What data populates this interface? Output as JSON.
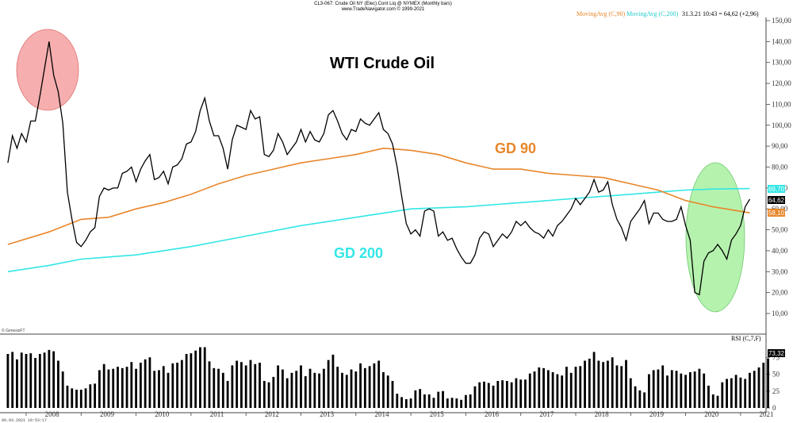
{
  "header": {
    "line1": "CL3-067: Crude Oil NY (Elec) Cont Liq @ NYMEX (Monthly bars)",
    "line2": "www.TradeNavigator.com © 1999-2021"
  },
  "legend": {
    "ma90": "MovingAvg (C,90)",
    "ma200": "MovingAvg (C,200)",
    "quote": "31.3.21 10:43 = 64,62 (+2,96)"
  },
  "annotations": {
    "title": "WTI Crude Oil",
    "gd90": "GD 90",
    "gd200": "GD 200"
  },
  "footer": {
    "genesis": "© GenesisFT",
    "timestamp": "09.03.2021 10:53:17"
  },
  "rsi": {
    "label": "RSI (C,7,F)",
    "last": "73,32"
  },
  "last_values": {
    "ma200": "69,70",
    "close": "64,62",
    "ma90": "58,10"
  },
  "colors": {
    "price": "#000000",
    "ma90": "#e8862a",
    "ma200": "#33e6e6",
    "red_circle": "#f4a0a0",
    "green_circle": "#a8f0a0",
    "axis_bg": "#ffffff"
  },
  "chart_data": {
    "type": "line",
    "title": "WTI Crude Oil",
    "x_ticks": [
      "2008",
      "2009",
      "2010",
      "2011",
      "2012",
      "2013",
      "2014",
      "2015",
      "2016",
      "2017",
      "2018",
      "2019",
      "2020",
      "2021"
    ],
    "y_ticks": [
      "10,00",
      "20,00",
      "30,00",
      "40,00",
      "50,00",
      "60,00",
      "70,00",
      "80,00",
      "90,00",
      "100,00",
      "110,00",
      "120,00",
      "130,00",
      "140,00",
      "150,00"
    ],
    "ylim": [
      0,
      153
    ],
    "series": [
      {
        "name": "Crude Oil NY",
        "points": [
          [
            "2007-09",
            82
          ],
          [
            "2007-10",
            95
          ],
          [
            "2007-11",
            89
          ],
          [
            "2007-12",
            96
          ],
          [
            "2008-01",
            92
          ],
          [
            "2008-02",
            102
          ],
          [
            "2008-03",
            102
          ],
          [
            "2008-04",
            114
          ],
          [
            "2008-05",
            127
          ],
          [
            "2008-06",
            140
          ],
          [
            "2008-07",
            124
          ],
          [
            "2008-08",
            116
          ],
          [
            "2008-09",
            101
          ],
          [
            "2008-10",
            68
          ],
          [
            "2008-11",
            55
          ],
          [
            "2008-12",
            44
          ],
          [
            "2009-01",
            42
          ],
          [
            "2009-02",
            45
          ],
          [
            "2009-03",
            49
          ],
          [
            "2009-04",
            51
          ],
          [
            "2009-05",
            66
          ],
          [
            "2009-06",
            70
          ],
          [
            "2009-07",
            69
          ],
          [
            "2009-08",
            70
          ],
          [
            "2009-09",
            70
          ],
          [
            "2009-10",
            77
          ],
          [
            "2009-11",
            78
          ],
          [
            "2009-12",
            80
          ],
          [
            "2010-01",
            73
          ],
          [
            "2010-02",
            79
          ],
          [
            "2010-03",
            83
          ],
          [
            "2010-04",
            86
          ],
          [
            "2010-05",
            74
          ],
          [
            "2010-06",
            75
          ],
          [
            "2010-07",
            78
          ],
          [
            "2010-08",
            72
          ],
          [
            "2010-09",
            80
          ],
          [
            "2010-10",
            81
          ],
          [
            "2010-11",
            84
          ],
          [
            "2010-12",
            91
          ],
          [
            "2011-01",
            92
          ],
          [
            "2011-02",
            97
          ],
          [
            "2011-03",
            107
          ],
          [
            "2011-04",
            113
          ],
          [
            "2011-05",
            102
          ],
          [
            "2011-06",
            95
          ],
          [
            "2011-07",
            95
          ],
          [
            "2011-08",
            89
          ],
          [
            "2011-09",
            79
          ],
          [
            "2011-10",
            93
          ],
          [
            "2011-11",
            100
          ],
          [
            "2011-12",
            99
          ],
          [
            "2012-01",
            98
          ],
          [
            "2012-02",
            107
          ],
          [
            "2012-03",
            103
          ],
          [
            "2012-04",
            104
          ],
          [
            "2012-05",
            86
          ],
          [
            "2012-06",
            85
          ],
          [
            "2012-07",
            88
          ],
          [
            "2012-08",
            96
          ],
          [
            "2012-09",
            92
          ],
          [
            "2012-10",
            86
          ],
          [
            "2012-11",
            89
          ],
          [
            "2012-12",
            92
          ],
          [
            "2013-01",
            98
          ],
          [
            "2013-02",
            92
          ],
          [
            "2013-03",
            97
          ],
          [
            "2013-04",
            93
          ],
          [
            "2013-05",
            92
          ],
          [
            "2013-06",
            96
          ],
          [
            "2013-07",
            105
          ],
          [
            "2013-08",
            107
          ],
          [
            "2013-09",
            102
          ],
          [
            "2013-10",
            96
          ],
          [
            "2013-11",
            93
          ],
          [
            "2013-12",
            98
          ],
          [
            "2014-01",
            97
          ],
          [
            "2014-02",
            103
          ],
          [
            "2014-03",
            101
          ],
          [
            "2014-04",
            100
          ],
          [
            "2014-05",
            103
          ],
          [
            "2014-06",
            106
          ],
          [
            "2014-07",
            98
          ],
          [
            "2014-08",
            96
          ],
          [
            "2014-09",
            91
          ],
          [
            "2014-10",
            80
          ],
          [
            "2014-11",
            66
          ],
          [
            "2014-12",
            53
          ],
          [
            "2015-01",
            48
          ],
          [
            "2015-02",
            50
          ],
          [
            "2015-03",
            47
          ],
          [
            "2015-04",
            59
          ],
          [
            "2015-05",
            60
          ],
          [
            "2015-06",
            59
          ],
          [
            "2015-07",
            47
          ],
          [
            "2015-08",
            49
          ],
          [
            "2015-09",
            45
          ],
          [
            "2015-10",
            46
          ],
          [
            "2015-11",
            41
          ],
          [
            "2015-12",
            37
          ],
          [
            "2016-01",
            34
          ],
          [
            "2016-02",
            34
          ],
          [
            "2016-03",
            38
          ],
          [
            "2016-04",
            46
          ],
          [
            "2016-05",
            49
          ],
          [
            "2016-06",
            48
          ],
          [
            "2016-07",
            42
          ],
          [
            "2016-08",
            45
          ],
          [
            "2016-09",
            48
          ],
          [
            "2016-10",
            46
          ],
          [
            "2016-11",
            49
          ],
          [
            "2016-12",
            54
          ],
          [
            "2017-01",
            52
          ],
          [
            "2017-02",
            54
          ],
          [
            "2017-03",
            51
          ],
          [
            "2017-04",
            49
          ],
          [
            "2017-05",
            48
          ],
          [
            "2017-06",
            46
          ],
          [
            "2017-07",
            50
          ],
          [
            "2017-08",
            47
          ],
          [
            "2017-09",
            52
          ],
          [
            "2017-10",
            54
          ],
          [
            "2017-11",
            57
          ],
          [
            "2017-12",
            60
          ],
          [
            "2018-01",
            65
          ],
          [
            "2018-02",
            62
          ],
          [
            "2018-03",
            65
          ],
          [
            "2018-04",
            68
          ],
          [
            "2018-05",
            74
          ],
          [
            "2018-06",
            68
          ],
          [
            "2018-07",
            69
          ],
          [
            "2018-08",
            73
          ],
          [
            "2018-09",
            62
          ],
          [
            "2018-10",
            55
          ],
          [
            "2018-11",
            51
          ],
          [
            "2018-12",
            45
          ],
          [
            "2019-01",
            54
          ],
          [
            "2019-02",
            57
          ],
          [
            "2019-03",
            60
          ],
          [
            "2019-04",
            64
          ],
          [
            "2019-05",
            53
          ],
          [
            "2019-06",
            58
          ],
          [
            "2019-07",
            58
          ],
          [
            "2019-08",
            55
          ],
          [
            "2019-09",
            54
          ],
          [
            "2019-10",
            54
          ],
          [
            "2019-11",
            55
          ],
          [
            "2019-12",
            61
          ],
          [
            "2020-01",
            52
          ],
          [
            "2020-02",
            45
          ],
          [
            "2020-03",
            20
          ],
          [
            "2020-04",
            19
          ],
          [
            "2020-05",
            35
          ],
          [
            "2020-06",
            39
          ],
          [
            "2020-07",
            40
          ],
          [
            "2020-08",
            43
          ],
          [
            "2020-09",
            40
          ],
          [
            "2020-10",
            36
          ],
          [
            "2020-11",
            45
          ],
          [
            "2020-12",
            48
          ],
          [
            "2021-01",
            52
          ],
          [
            "2021-02",
            61
          ],
          [
            "2021-03",
            64.62
          ]
        ]
      },
      {
        "name": "MovingAvg (C,90)",
        "points": [
          [
            "2007-09",
            43
          ],
          [
            "2008-06",
            49
          ],
          [
            "2009-01",
            55
          ],
          [
            "2009-07",
            56
          ],
          [
            "2010-01",
            60
          ],
          [
            "2010-07",
            63
          ],
          [
            "2011-01",
            67
          ],
          [
            "2011-07",
            72
          ],
          [
            "2012-01",
            76
          ],
          [
            "2012-07",
            79
          ],
          [
            "2013-01",
            82
          ],
          [
            "2013-07",
            84
          ],
          [
            "2014-01",
            86
          ],
          [
            "2014-07",
            89
          ],
          [
            "2015-01",
            88
          ],
          [
            "2015-07",
            86
          ],
          [
            "2016-01",
            82
          ],
          [
            "2016-07",
            79
          ],
          [
            "2017-01",
            79
          ],
          [
            "2017-07",
            77
          ],
          [
            "2018-01",
            76
          ],
          [
            "2018-07",
            75
          ],
          [
            "2019-01",
            72
          ],
          [
            "2019-07",
            69
          ],
          [
            "2020-01",
            64
          ],
          [
            "2020-07",
            61
          ],
          [
            "2021-03",
            58.1
          ]
        ]
      },
      {
        "name": "MovingAvg (C,200)",
        "points": [
          [
            "2007-09",
            30
          ],
          [
            "2008-06",
            33
          ],
          [
            "2009-01",
            36
          ],
          [
            "2010-01",
            38
          ],
          [
            "2011-01",
            42
          ],
          [
            "2012-01",
            47
          ],
          [
            "2013-01",
            52
          ],
          [
            "2014-01",
            56
          ],
          [
            "2014-10",
            59
          ],
          [
            "2015-01",
            60
          ],
          [
            "2016-01",
            61
          ],
          [
            "2017-01",
            63
          ],
          [
            "2018-01",
            65
          ],
          [
            "2019-01",
            67
          ],
          [
            "2019-07",
            68
          ],
          [
            "2020-01",
            69
          ],
          [
            "2020-07",
            69.5
          ],
          [
            "2021-03",
            69.7
          ]
        ]
      }
    ],
    "rsi": {
      "name": "RSI (C,7,F)",
      "ylim": [
        0,
        100
      ],
      "y_ticks": [
        "0",
        "25",
        "50",
        "75"
      ],
      "values": [
        80,
        83,
        72,
        82,
        80,
        81,
        74,
        80,
        82,
        86,
        84,
        70,
        54,
        33,
        29,
        27,
        27,
        29,
        35,
        36,
        56,
        65,
        57,
        58,
        61,
        59,
        61,
        68,
        58,
        67,
        72,
        75,
        55,
        56,
        62,
        52,
        66,
        67,
        71,
        80,
        81,
        85,
        90,
        90,
        69,
        59,
        58,
        52,
        40,
        63,
        70,
        68,
        63,
        71,
        65,
        67,
        40,
        38,
        46,
        63,
        57,
        44,
        52,
        55,
        63,
        47,
        58,
        52,
        51,
        58,
        71,
        79,
        61,
        52,
        49,
        57,
        54,
        66,
        59,
        62,
        66,
        70,
        53,
        48,
        40,
        21,
        16,
        13,
        14,
        26,
        28,
        20,
        20,
        15,
        24,
        25,
        14,
        15,
        14,
        12,
        19,
        20,
        32,
        38,
        39,
        37,
        33,
        40,
        41,
        40,
        38,
        44,
        42,
        42,
        51,
        54,
        60,
        59,
        56,
        53,
        50,
        48,
        61,
        52,
        61,
        62,
        70,
        73,
        83,
        70,
        68,
        70,
        75,
        63,
        62,
        71,
        44,
        32,
        26,
        23,
        50,
        56,
        57,
        63,
        48,
        56,
        55,
        51,
        49,
        53,
        54,
        58,
        51,
        33,
        20,
        18,
        38,
        43,
        44,
        49,
        45,
        43,
        52,
        55,
        60,
        67,
        73.32
      ]
    }
  }
}
